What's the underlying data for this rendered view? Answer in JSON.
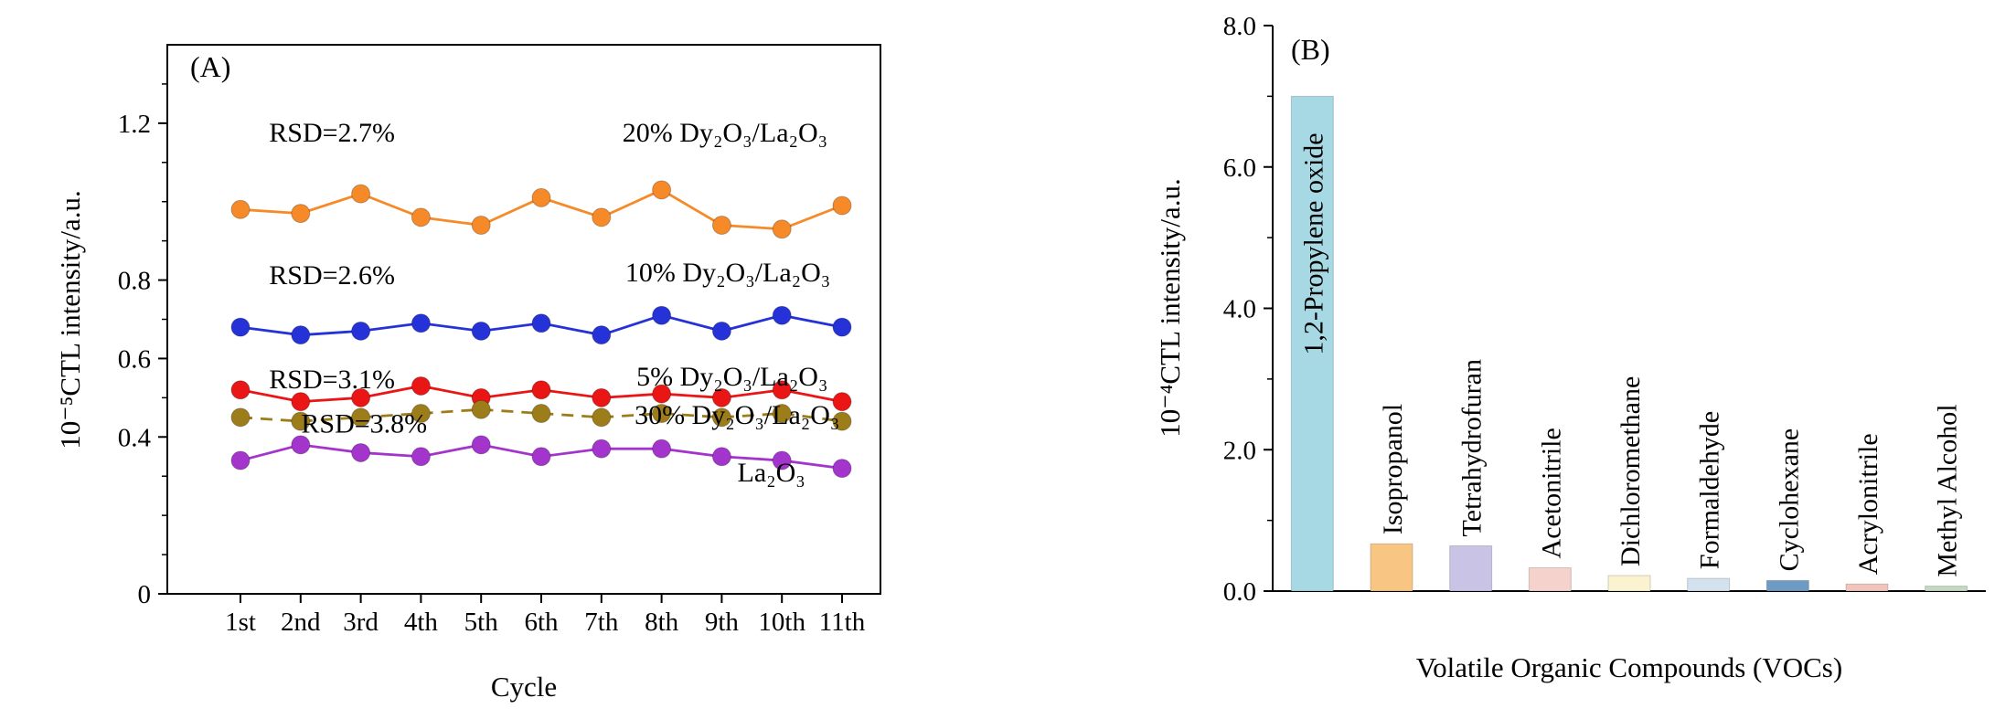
{
  "figure_title": "",
  "chart_data": [
    {
      "type": "line",
      "panel_label": "(A)",
      "xlabel": "Cycle",
      "ylabel": "10⁻⁵CTL intensity/a.u.",
      "categories": [
        "1st",
        "2nd",
        "3rd",
        "4th",
        "5th",
        "6th",
        "7th",
        "8th",
        "9th",
        "10th",
        "11th"
      ],
      "ylim": [
        0,
        1.4
      ],
      "grid": false,
      "legend": "none (in-plot text annotations)",
      "yticks": [
        {
          "v": 0,
          "label": "0"
        },
        {
          "v": 0.4,
          "label": "0.4"
        },
        {
          "v": 0.6,
          "label": "0.6"
        },
        {
          "v": 0.8,
          "label": "0.8"
        },
        {
          "v": 1.2,
          "label": "1.2"
        }
      ],
      "yminor": [
        0.1,
        0.2,
        0.3,
        0.5,
        0.7,
        0.9,
        1.0,
        1.1,
        1.3
      ],
      "series": [
        {
          "name": "20% Dy₂O₃/La₂O₃",
          "rsd": "RSD=2.7%",
          "color": "#f78a28",
          "dash": null,
          "values": [
            0.98,
            0.97,
            1.02,
            0.96,
            0.94,
            1.01,
            0.96,
            1.03,
            0.94,
            0.93,
            0.99
          ]
        },
        {
          "name": "10% Dy₂O₃/La₂O₃",
          "rsd": "RSD=2.6%",
          "color": "#2532d8",
          "dash": null,
          "values": [
            0.68,
            0.66,
            0.67,
            0.69,
            0.67,
            0.69,
            0.66,
            0.71,
            0.67,
            0.71,
            0.68
          ]
        },
        {
          "name": "5% Dy₂O₃/La₂O₃",
          "rsd": "RSD=3.1%",
          "color": "#ea1515",
          "dash": null,
          "values": [
            0.52,
            0.49,
            0.5,
            0.53,
            0.5,
            0.52,
            0.5,
            0.51,
            0.5,
            0.52,
            0.49
          ]
        },
        {
          "name": "30% Dy₂O₃/La₂O₃",
          "rsd": "RSD=3.8%",
          "color": "#9d7d1a",
          "dash": "13,9",
          "values": [
            0.45,
            0.44,
            0.45,
            0.46,
            0.47,
            0.46,
            0.45,
            0.46,
            0.45,
            0.46,
            0.44
          ]
        },
        {
          "name": "La₂O₃",
          "rsd": "",
          "color": "#a335cc",
          "dash": null,
          "values": [
            0.34,
            0.38,
            0.36,
            0.35,
            0.38,
            0.35,
            0.37,
            0.37,
            0.35,
            0.34,
            0.32
          ]
        }
      ],
      "annotations": [
        {
          "text": "RSD=2.7%",
          "fx": 0.231,
          "fy": 0.16
        },
        {
          "text": "20% Dy₂O₃/La₂O₃",
          "fx": 0.782,
          "fy": 0.16
        },
        {
          "text": "RSD=2.6%",
          "fx": 0.231,
          "fy": 0.419
        },
        {
          "text": "10% Dy₂O₃/La₂O₃",
          "fx": 0.786,
          "fy": 0.414
        },
        {
          "text": "RSD=3.1%",
          "fx": 0.231,
          "fy": 0.609
        },
        {
          "text": "5% Dy₂O₃/La₂O₃",
          "fx": 0.792,
          "fy": 0.604
        },
        {
          "text": "RSD=3.8%",
          "fx": 0.276,
          "fy": 0.69
        },
        {
          "text": "30% Dy₂O₃/La₂O₃",
          "fx": 0.799,
          "fy": 0.674
        },
        {
          "text": "La₂O₃",
          "fx": 0.847,
          "fy": 0.779
        }
      ]
    },
    {
      "type": "bar",
      "panel_label": "(B)",
      "xlabel": "Volatile Organic Compounds (VOCs)",
      "ylabel": "10⁻⁴CTL intensity/a.u.",
      "ylim": [
        0,
        8
      ],
      "grid": false,
      "yticks": [
        {
          "v": 0,
          "label": "0.0"
        },
        {
          "v": 2,
          "label": "2.0"
        },
        {
          "v": 4,
          "label": "4.0"
        },
        {
          "v": 6,
          "label": "6.0"
        },
        {
          "v": 8,
          "label": "8.0"
        }
      ],
      "yminor": [
        1,
        3,
        5,
        7
      ],
      "bars": [
        {
          "label": "1,2-Propylene oxide",
          "value": 7.0,
          "color": "#a6d9e3",
          "label_inside": true
        },
        {
          "label": "Isopropanol",
          "value": 0.67,
          "color": "#f9c583",
          "label_inside": false
        },
        {
          "label": "Tetrahydrofuran",
          "value": 0.64,
          "color": "#c9c3e6",
          "label_inside": false
        },
        {
          "label": "Acetonitrile",
          "value": 0.33,
          "color": "#f6d2cc",
          "label_inside": false
        },
        {
          "label": "Dichloromethane",
          "value": 0.22,
          "color": "#fbf3cf",
          "label_inside": false
        },
        {
          "label": "Formaldehyde",
          "value": 0.18,
          "color": "#d4e2f0",
          "label_inside": false
        },
        {
          "label": "Cyclohexane",
          "value": 0.15,
          "color": "#6d9bc3",
          "label_inside": false
        },
        {
          "label": "Acrylonitrile",
          "value": 0.1,
          "color": "#f2c4bc",
          "label_inside": false
        },
        {
          "label": "Methyl Alcohol",
          "value": 0.07,
          "color": "#c2dbc0",
          "label_inside": false
        }
      ]
    }
  ]
}
